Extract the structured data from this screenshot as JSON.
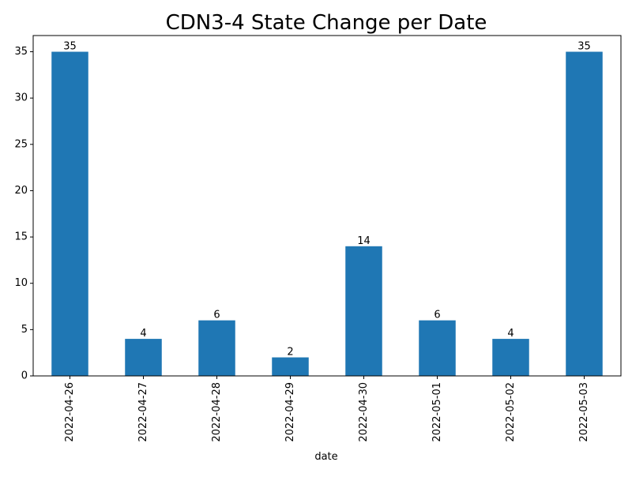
{
  "chart_data": {
    "type": "bar",
    "title": "CDN3-4 State Change per Date",
    "xlabel": "date",
    "ylabel": "",
    "categories": [
      "2022-04-26",
      "2022-04-27",
      "2022-04-28",
      "2022-04-29",
      "2022-04-30",
      "2022-05-01",
      "2022-05-02",
      "2022-05-03"
    ],
    "values": [
      35,
      4,
      6,
      2,
      14,
      6,
      4,
      35
    ],
    "data_labels": [
      "35",
      "4",
      "6",
      "2",
      "14",
      "6",
      "4",
      "35"
    ],
    "ylim": [
      0,
      36.75
    ],
    "yticks": [
      0,
      5,
      10,
      15,
      20,
      25,
      30,
      35
    ],
    "ytick_labels": [
      "0",
      "5",
      "10",
      "15",
      "20",
      "25",
      "30",
      "35"
    ],
    "bar_color": "#1f77b4",
    "grid": false,
    "legend": "none"
  }
}
